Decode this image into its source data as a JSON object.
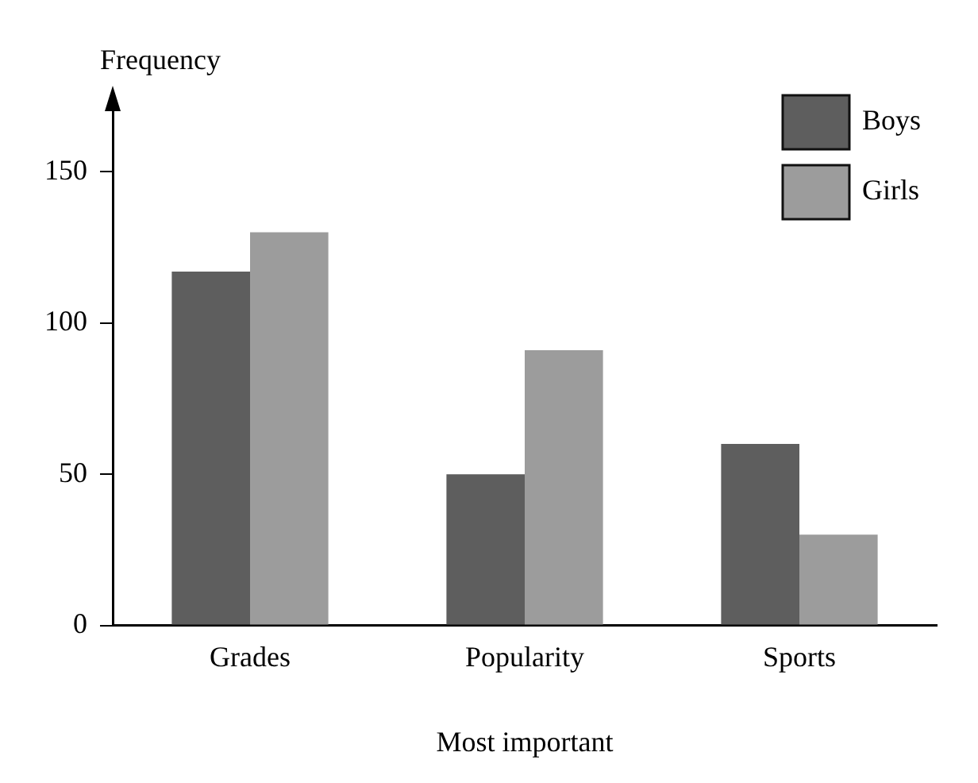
{
  "chart_data": {
    "type": "bar",
    "xlabel": "Most important",
    "ylabel": "Frequency",
    "categories": [
      "Grades",
      "Popularity",
      "Sports"
    ],
    "series": [
      {
        "name": "Boys",
        "color": "#5e5e5e",
        "values": [
          117,
          50,
          60
        ]
      },
      {
        "name": "Girls",
        "color": "#9c9c9c",
        "values": [
          130,
          91,
          30
        ]
      }
    ],
    "ylim": [
      0,
      170
    ],
    "yticks": [
      0,
      50,
      100,
      150
    ],
    "grid": false,
    "legend": "top right"
  }
}
